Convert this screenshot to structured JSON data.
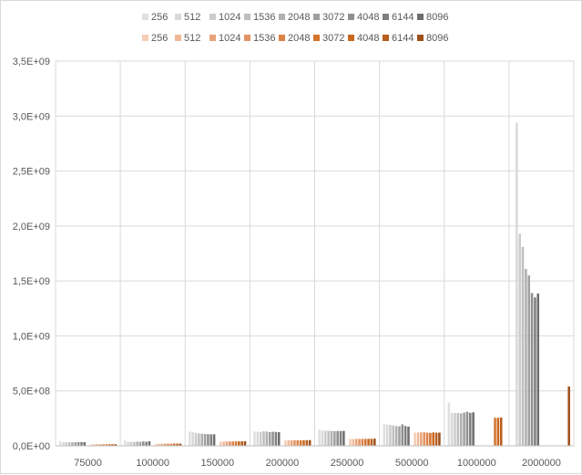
{
  "chart_data": {
    "type": "bar",
    "categories": [
      "75000",
      "100000",
      "150000",
      "200000",
      "250000",
      "500000",
      "1000000",
      "2000000"
    ],
    "ylim": [
      0,
      3500000000
    ],
    "yticks": [
      0,
      500000000,
      1000000000,
      1500000000,
      2000000000,
      2500000000,
      3000000000,
      3500000000
    ],
    "ytick_labels": [
      "0,0E+00",
      "5,0E+08",
      "1,0E+09",
      "1,5E+09",
      "2,0E+09",
      "2,5E+09",
      "3,0E+09",
      "3,5E+09"
    ],
    "grid": true,
    "legend_position": "top",
    "groups": [
      {
        "series": [
          {
            "name": "256",
            "color": "#e0e0e0",
            "values": [
              40000000,
              50000000,
              130000000,
              130000000,
              145000000,
              200000000,
              395000000,
              0
            ]
          },
          {
            "name": "512",
            "color": "#d9d9d9",
            "values": [
              32000000,
              38000000,
              125000000,
              128000000,
              140000000,
              193000000,
              300000000,
              2940000000
            ]
          },
          {
            "name": "1024",
            "color": "#cccccc",
            "values": [
              32000000,
              35000000,
              118000000,
              126000000,
              138000000,
              190000000,
              298000000,
              1930000000
            ]
          },
          {
            "name": "1536",
            "color": "#bfbfbf",
            "values": [
              32000000,
              35000000,
              112000000,
              132000000,
              136000000,
              185000000,
              298000000,
              1810000000
            ]
          },
          {
            "name": "2048",
            "color": "#b0b0b0",
            "values": [
              33000000,
              38000000,
              110000000,
              130000000,
              135000000,
              180000000,
              295000000,
              1610000000
            ]
          },
          {
            "name": "3072",
            "color": "#a0a0a0",
            "values": [
              33000000,
              36000000,
              108000000,
              125000000,
              134000000,
              178000000,
              302000000,
              1550000000
            ]
          },
          {
            "name": "4048",
            "color": "#8f8f8f",
            "values": [
              34000000,
              40000000,
              106000000,
              128000000,
              135000000,
              195000000,
              310000000,
              1390000000
            ]
          },
          {
            "name": "6144",
            "color": "#7f7f7f",
            "values": [
              34000000,
              37000000,
              105000000,
              126000000,
              135000000,
              180000000,
              300000000,
              1350000000
            ]
          },
          {
            "name": "8096",
            "color": "#6e6e6e",
            "values": [
              33000000,
              42000000,
              105000000,
              124000000,
              135000000,
              175000000,
              305000000,
              1385000000
            ]
          }
        ]
      },
      {
        "series": [
          {
            "name": "256",
            "color": "#f4cdb4",
            "values": [
              14000000,
              18000000,
              38000000,
              50000000,
              62000000,
              120000000,
              0,
              0
            ]
          },
          {
            "name": "512",
            "color": "#f0b898",
            "values": [
              14000000,
              18000000,
              38000000,
              50000000,
              62000000,
              122000000,
              0,
              0
            ]
          },
          {
            "name": "1024",
            "color": "#e9a47b",
            "values": [
              14000000,
              19000000,
              40000000,
              50000000,
              63000000,
              122000000,
              0,
              0
            ]
          },
          {
            "name": "1536",
            "color": "#e39363",
            "values": [
              14000000,
              19000000,
              40000000,
              50000000,
              63000000,
              123000000,
              0,
              0
            ]
          },
          {
            "name": "2048",
            "color": "#dd8247",
            "values": [
              14000000,
              19000000,
              40000000,
              50000000,
              63000000,
              120000000,
              0,
              0
            ]
          },
          {
            "name": "3072",
            "color": "#d4742f",
            "values": [
              14000000,
              19000000,
              40000000,
              50000000,
              63000000,
              118000000,
              255000000,
              0
            ]
          },
          {
            "name": "4048",
            "color": "#c8671f",
            "values": [
              15000000,
              20000000,
              41000000,
              51000000,
              64000000,
              122000000,
              255000000,
              0
            ]
          },
          {
            "name": "6144",
            "color": "#b85d1d",
            "values": [
              15000000,
              20000000,
              41000000,
              51000000,
              64000000,
              120000000,
              258000000,
              0
            ]
          },
          {
            "name": "8096",
            "color": "#9e4f1a",
            "values": [
              15000000,
              20000000,
              42000000,
              52000000,
              65000000,
              120000000,
              0,
              540000000
            ]
          }
        ]
      }
    ]
  }
}
